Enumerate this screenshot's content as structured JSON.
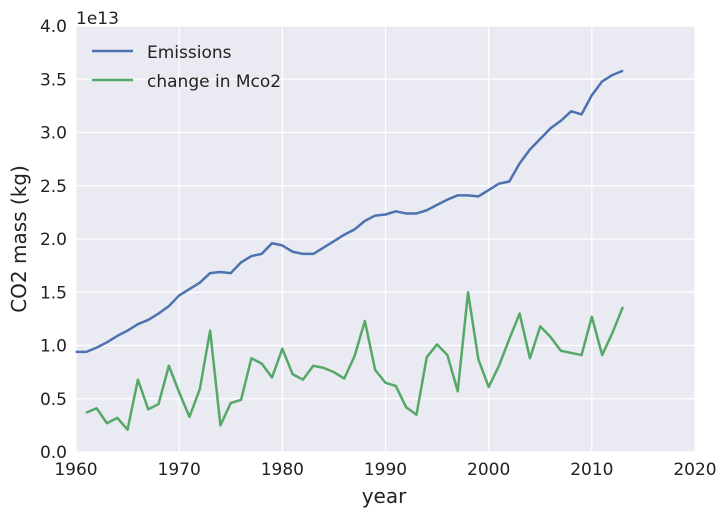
{
  "chart_data": {
    "type": "line",
    "xlabel": "year",
    "ylabel": "CO2 mass (kg)",
    "y_offset_label": "1e13",
    "xlim": [
      1960,
      2020
    ],
    "ylim": [
      0.0,
      4.0
    ],
    "x_ticks": [
      1960,
      1970,
      1980,
      1990,
      2000,
      2010,
      2020
    ],
    "x_tick_labels": [
      "1960",
      "1970",
      "1980",
      "1990",
      "2000",
      "2010",
      "2020"
    ],
    "y_ticks": [
      0.0,
      0.5,
      1.0,
      1.5,
      2.0,
      2.5,
      3.0,
      3.5,
      4.0
    ],
    "y_tick_labels": [
      "0.0",
      "0.5",
      "1.0",
      "1.5",
      "2.0",
      "2.5",
      "3.0",
      "3.5",
      "4.0"
    ],
    "grid": true,
    "legend_position": "top-left",
    "background_color": "#eaeaf2",
    "series": [
      {
        "name": "Emissions",
        "color": "#4c72b0",
        "x": [
          1960,
          1961,
          1962,
          1963,
          1964,
          1965,
          1966,
          1967,
          1968,
          1969,
          1970,
          1971,
          1972,
          1973,
          1974,
          1975,
          1976,
          1977,
          1978,
          1979,
          1980,
          1981,
          1982,
          1983,
          1984,
          1985,
          1986,
          1987,
          1988,
          1989,
          1990,
          1991,
          1992,
          1993,
          1994,
          1995,
          1996,
          1997,
          1998,
          1999,
          2000,
          2001,
          2002,
          2003,
          2004,
          2005,
          2006,
          2007,
          2008,
          2009,
          2010,
          2011,
          2012,
          2013
        ],
        "values": [
          0.94,
          0.94,
          0.98,
          1.03,
          1.09,
          1.14,
          1.2,
          1.24,
          1.3,
          1.37,
          1.47,
          1.53,
          1.59,
          1.68,
          1.69,
          1.68,
          1.78,
          1.84,
          1.86,
          1.96,
          1.94,
          1.88,
          1.86,
          1.86,
          1.92,
          1.98,
          2.04,
          2.09,
          2.17,
          2.22,
          2.23,
          2.26,
          2.24,
          2.24,
          2.27,
          2.32,
          2.37,
          2.41,
          2.41,
          2.4,
          2.46,
          2.52,
          2.54,
          2.71,
          2.84,
          2.94,
          3.04,
          3.11,
          3.2,
          3.17,
          3.35,
          3.48,
          3.54,
          3.58
        ]
      },
      {
        "name": "change in Mco2",
        "color": "#55a868",
        "x": [
          1961,
          1962,
          1963,
          1964,
          1965,
          1966,
          1967,
          1968,
          1969,
          1970,
          1971,
          1972,
          1973,
          1974,
          1975,
          1976,
          1977,
          1978,
          1979,
          1980,
          1981,
          1982,
          1983,
          1984,
          1985,
          1986,
          1987,
          1988,
          1989,
          1990,
          1991,
          1992,
          1993,
          1994,
          1995,
          1996,
          1997,
          1998,
          1999,
          2000,
          2001,
          2002,
          2003,
          2004,
          2005,
          2006,
          2007,
          2008,
          2009,
          2010,
          2011,
          2012,
          2013
        ],
        "values": [
          0.37,
          0.41,
          0.27,
          0.32,
          0.21,
          0.68,
          0.4,
          0.45,
          0.81,
          0.56,
          0.33,
          0.59,
          1.14,
          0.25,
          0.46,
          0.49,
          0.88,
          0.83,
          0.7,
          0.97,
          0.73,
          0.68,
          0.81,
          0.79,
          0.75,
          0.69,
          0.9,
          1.23,
          0.77,
          0.65,
          0.62,
          0.42,
          0.35,
          0.89,
          1.01,
          0.91,
          0.57,
          1.5,
          0.87,
          0.61,
          0.81,
          1.06,
          1.3,
          0.88,
          1.18,
          1.08,
          0.95,
          0.93,
          0.91,
          1.27,
          0.91,
          1.12,
          1.36
        ]
      }
    ]
  }
}
